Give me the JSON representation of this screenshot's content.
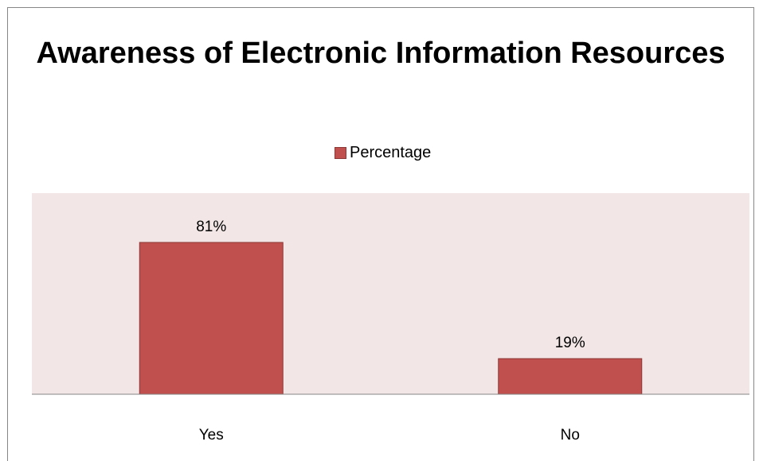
{
  "chart_data": {
    "type": "bar",
    "title": "Awareness of Electronic Information Resources",
    "categories": [
      "Yes",
      "No"
    ],
    "series": [
      {
        "name": "Percentage",
        "values": [
          81,
          19
        ]
      }
    ],
    "data_labels": [
      "81%",
      "19%"
    ],
    "xlabel": "",
    "ylabel": "",
    "ylim": [
      0,
      100
    ],
    "grid": false,
    "legend_position": "top",
    "colors": {
      "bar": "#c0504d",
      "bar_border": "#8c3836",
      "plot_background": "#f2e6e6"
    }
  }
}
